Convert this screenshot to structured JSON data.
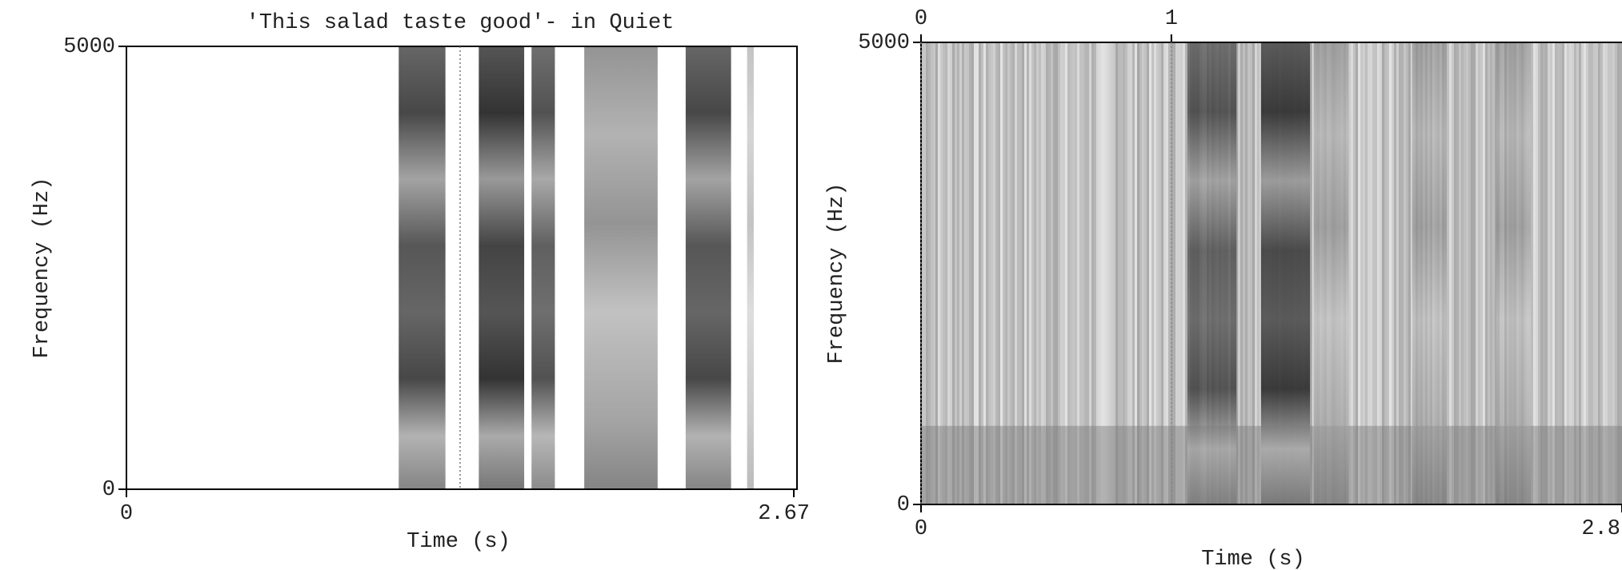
{
  "chart_data": [
    {
      "type": "spectrogram",
      "title": "'This salad taste good'- in Quiet",
      "x_label": "Time (s)",
      "y_label": "Frequency (Hz)",
      "xlim": [
        0,
        2.67
      ],
      "xticks": [
        0,
        2.67
      ],
      "ylim": [
        0,
        5000
      ],
      "yticks": [
        0,
        5000
      ]
    },
    {
      "type": "spectrogram",
      "x_label": "Time (s)",
      "y_label": "Frequency (Hz)",
      "xlim": [
        0,
        2.8
      ],
      "xticks": [
        0,
        2.8
      ],
      "top_xticks": [
        0,
        1
      ],
      "ylim": [
        0,
        5000
      ],
      "yticks": [
        0,
        5000
      ]
    }
  ]
}
